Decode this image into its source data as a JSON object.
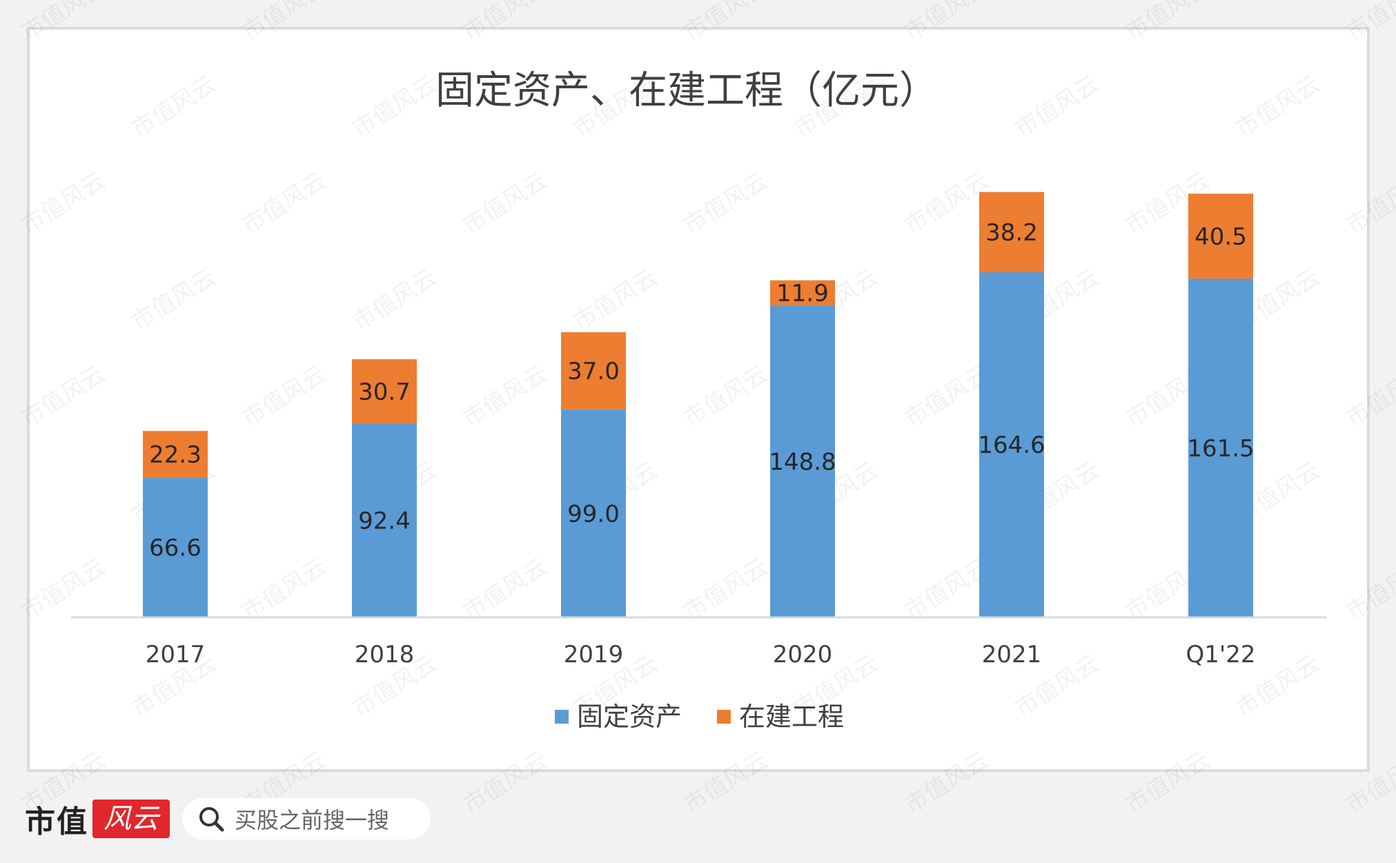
{
  "chart_data": {
    "type": "bar",
    "stacked": true,
    "title": "固定资产、在建工程（亿元）",
    "categories": [
      "2017",
      "2018",
      "2019",
      "2020",
      "2021",
      "Q1'22"
    ],
    "series": [
      {
        "name": "固定资产",
        "values": [
          66.6,
          92.4,
          99.0,
          148.8,
          164.6,
          161.5
        ],
        "labels": [
          "66.6",
          "92.4",
          "99.0",
          "148.8",
          "164.6",
          "161.5"
        ],
        "color": "#5b9bd5"
      },
      {
        "name": "在建工程",
        "values": [
          22.3,
          30.7,
          37.0,
          11.9,
          38.2,
          40.5
        ],
        "labels": [
          "22.3",
          "30.7",
          "37.0",
          "11.9",
          "38.2",
          "40.5"
        ],
        "color": "#ed7d31"
      }
    ],
    "ylim": [
      0,
      245
    ],
    "grid": false,
    "legend": "bottom"
  },
  "watermark": "市值风云",
  "footer": {
    "brand": "市值",
    "brand_mark": "风云",
    "search_placeholder": "买股之前搜一搜"
  },
  "colors": {
    "axis": "#d9d9d9",
    "brand_red": "#e3262c"
  }
}
